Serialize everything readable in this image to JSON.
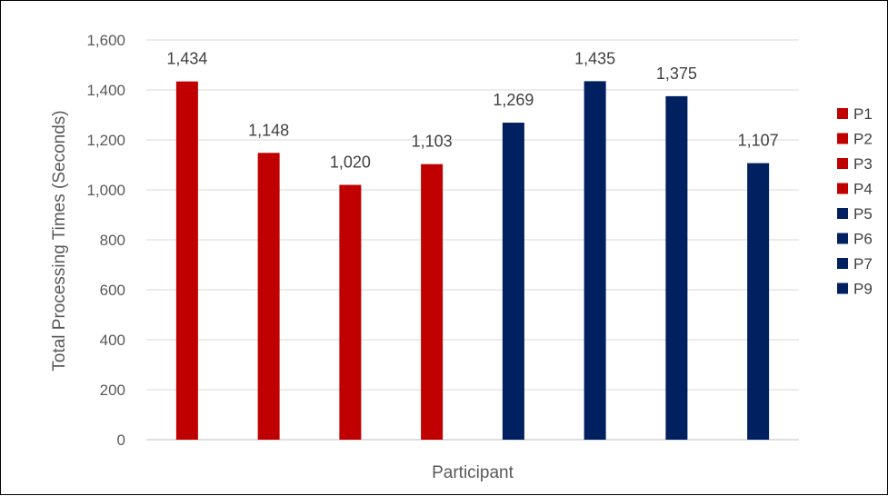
{
  "chart_data": {
    "type": "bar",
    "xlabel": "Participant",
    "ylabel": "Total Processing Times (Seconds)",
    "ylim": [
      0,
      1600
    ],
    "y_ticks": [
      0,
      200,
      400,
      600,
      800,
      1000,
      1200,
      1400,
      1600
    ],
    "y_tick_labels": [
      "0",
      "200",
      "400",
      "600",
      "800",
      "1,000",
      "1,200",
      "1,400",
      "1,600"
    ],
    "grid": true,
    "legend_position": "right",
    "series": [
      {
        "name": "P1",
        "value": 1434,
        "label": "1,434",
        "color": "#C00000"
      },
      {
        "name": "P2",
        "value": 1148,
        "label": "1,148",
        "color": "#C00000"
      },
      {
        "name": "P3",
        "value": 1020,
        "label": "1,020",
        "color": "#C00000"
      },
      {
        "name": "P4",
        "value": 1103,
        "label": "1,103",
        "color": "#C00000"
      },
      {
        "name": "P5",
        "value": 1269,
        "label": "1,269",
        "color": "#002060"
      },
      {
        "name": "P6",
        "value": 1435,
        "label": "1,435",
        "color": "#002060"
      },
      {
        "name": "P7",
        "value": 1375,
        "label": "1,375",
        "color": "#002060"
      },
      {
        "name": "P9",
        "value": 1107,
        "label": "1,107",
        "color": "#002060"
      }
    ]
  },
  "colors": {
    "grid": "#d9d9d9",
    "axis": "#bfbfbf"
  }
}
